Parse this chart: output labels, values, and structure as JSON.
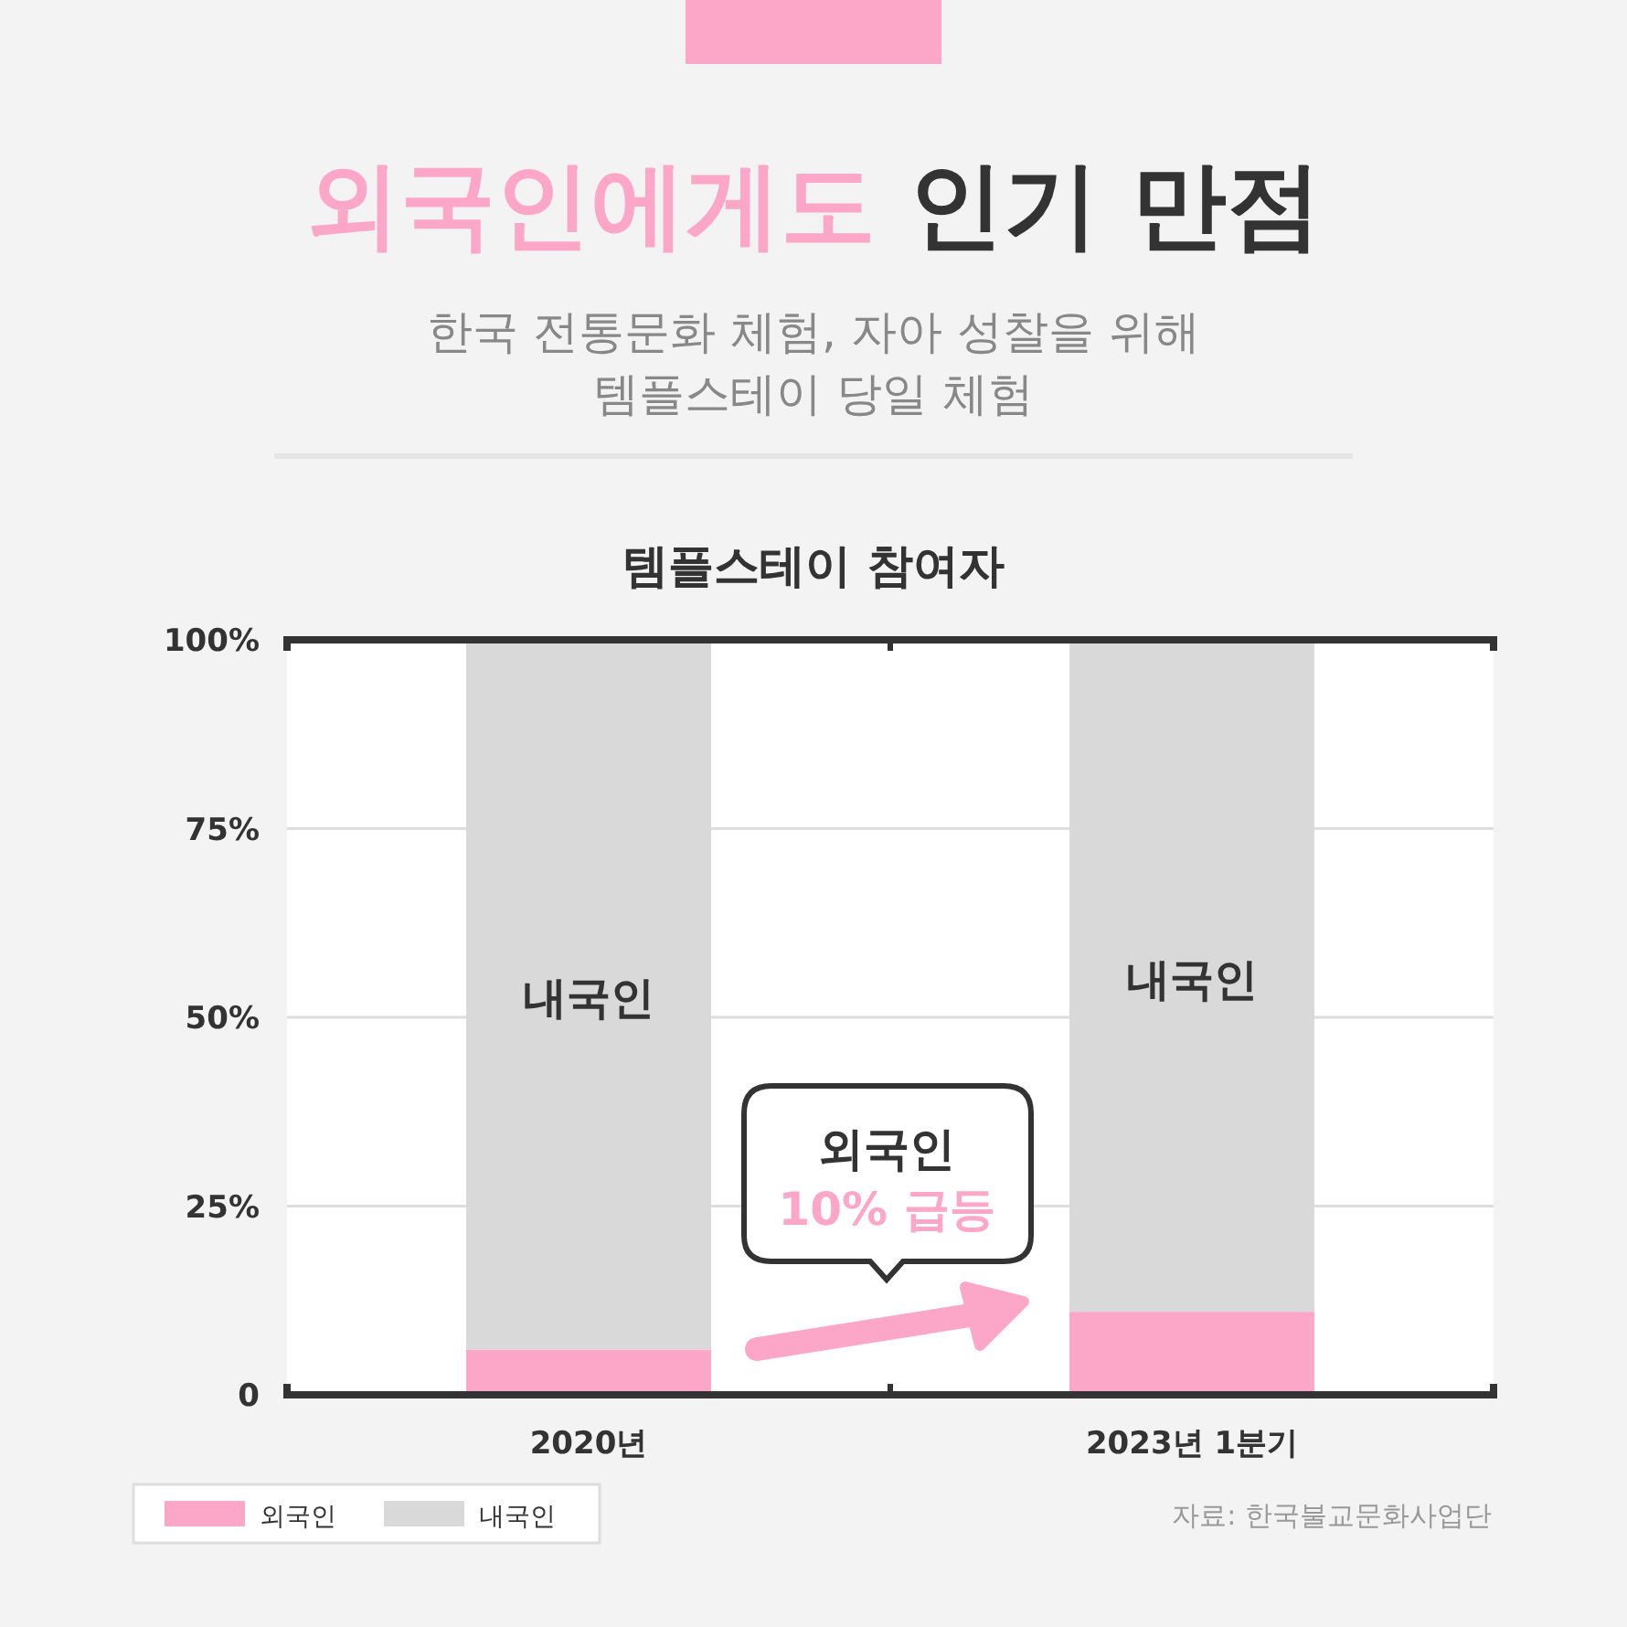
{
  "chart_data": {
    "type": "bar",
    "stacked": true,
    "title": "외국인에게도 인기 만점",
    "subtitle": "한국 전통문화 체험, 자아 성찰을 위해\n템플스테이 당일 체험",
    "xlabel": "템플스테이 참여자",
    "categories": [
      "2020년",
      "2023년 1분기"
    ],
    "series": [
      {
        "name": "외국인",
        "color": "#fda7c8",
        "values": [
          6,
          11
        ]
      },
      {
        "name": "내국인",
        "color": "#d9d9d9",
        "values": [
          94,
          89
        ]
      }
    ],
    "ylim": [
      0,
      100
    ],
    "yticks": [
      0,
      {
        "value": 25,
        "label": "25%"
      },
      {
        "value": 50,
        "label": "50%"
      },
      {
        "value": 75,
        "label": "75%"
      },
      {
        "value": 100,
        "label": "100%"
      }
    ],
    "grid": "y",
    "legend": "bottom left",
    "annotations": [
      "외국인",
      "10% 급등",
      "자료: 한국불교문화사업단"
    ]
  }
}
